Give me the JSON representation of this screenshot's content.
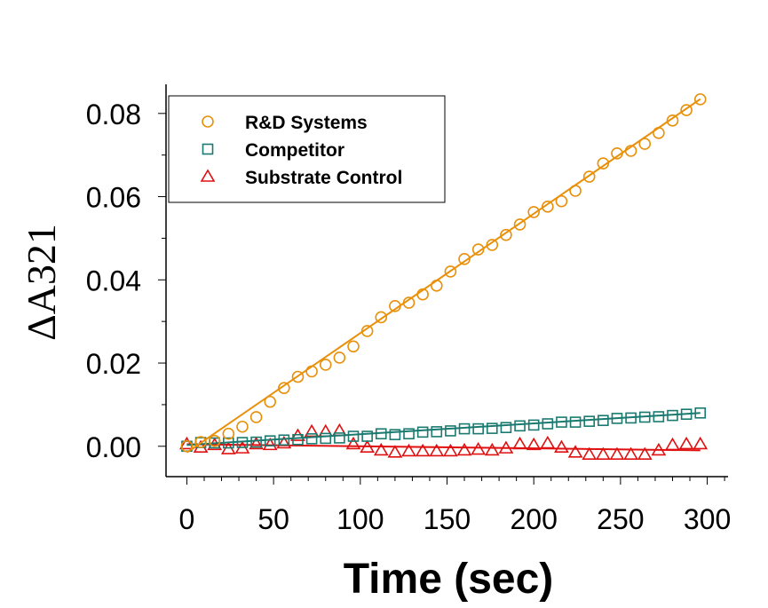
{
  "chart_data": {
    "type": "scatter",
    "title": "",
    "xlabel": "Time (sec)",
    "ylabel": "ΔA321",
    "xlim": [
      -12,
      312
    ],
    "ylim": [
      -0.0073,
      0.087
    ],
    "xticks": [
      0,
      50,
      100,
      150,
      200,
      250,
      300
    ],
    "xtick_labels": [
      "0",
      "50",
      "100",
      "150",
      "200",
      "250",
      "300"
    ],
    "yticks": [
      0,
      0.02,
      0.04,
      0.06,
      0.08
    ],
    "ytick_labels": [
      "0.00",
      "0.02",
      "0.04",
      "0.06",
      "0.08"
    ],
    "grid": false,
    "legend_placement": "top-left",
    "x": [
      0,
      8,
      16,
      24,
      32,
      40,
      48,
      56,
      64,
      72,
      80,
      88,
      96,
      104,
      112,
      120,
      128,
      136,
      144,
      152,
      160,
      168,
      176,
      184,
      192,
      200,
      208,
      216,
      224,
      232,
      240,
      248,
      256,
      264,
      272,
      280,
      288,
      296
    ],
    "series": [
      {
        "name": "R&D Systems",
        "marker": "circle",
        "color": "#E8900A",
        "values": [
          0.0,
          0.001,
          0.0013,
          0.003,
          0.0047,
          0.007,
          0.0107,
          0.014,
          0.0167,
          0.018,
          0.0196,
          0.0213,
          0.024,
          0.0277,
          0.031,
          0.0337,
          0.0345,
          0.0365,
          0.0386,
          0.042,
          0.045,
          0.0473,
          0.0484,
          0.0508,
          0.0533,
          0.0563,
          0.0576,
          0.0589,
          0.0614,
          0.0648,
          0.068,
          0.0704,
          0.071,
          0.0727,
          0.0753,
          0.0783,
          0.0808,
          0.0834
        ],
        "fit": [
          -0.0015,
          0.000287
        ]
      },
      {
        "name": "Competitor",
        "marker": "square",
        "color": "#1A7A70",
        "values": [
          0.0,
          0.0009,
          0.0008,
          0.0008,
          0.0009,
          0.001,
          0.0013,
          0.0015,
          0.0016,
          0.0018,
          0.0019,
          0.002,
          0.0024,
          0.0024,
          0.003,
          0.0028,
          0.003,
          0.0034,
          0.0035,
          0.0037,
          0.0042,
          0.0042,
          0.0043,
          0.0045,
          0.0049,
          0.0051,
          0.0054,
          0.0058,
          0.0058,
          0.006,
          0.0062,
          0.0067,
          0.0068,
          0.007,
          0.0071,
          0.0074,
          0.0077,
          0.008
        ],
        "fit": [
          0.0003,
          2.6e-05
        ]
      },
      {
        "name": "Substrate Control",
        "marker": "triangle",
        "color": "#E01010",
        "values": [
          0.0005,
          -0.0003,
          0.0003,
          -0.0007,
          -0.0005,
          0.0005,
          0.0003,
          0.0007,
          0.0025,
          0.0035,
          0.0035,
          0.0037,
          0.0005,
          -0.0003,
          -0.001,
          -0.0015,
          -0.0012,
          -0.0012,
          -0.0012,
          -0.0012,
          -0.001,
          -0.0008,
          -0.001,
          -0.0005,
          0.0005,
          0.0003,
          0.0007,
          -0.0003,
          -0.0015,
          -0.002,
          -0.002,
          -0.002,
          -0.002,
          -0.002,
          -0.001,
          0.0003,
          0.0005,
          0.0005
        ],
        "fit": [
          0.0005,
          -5e-06
        ]
      }
    ]
  }
}
